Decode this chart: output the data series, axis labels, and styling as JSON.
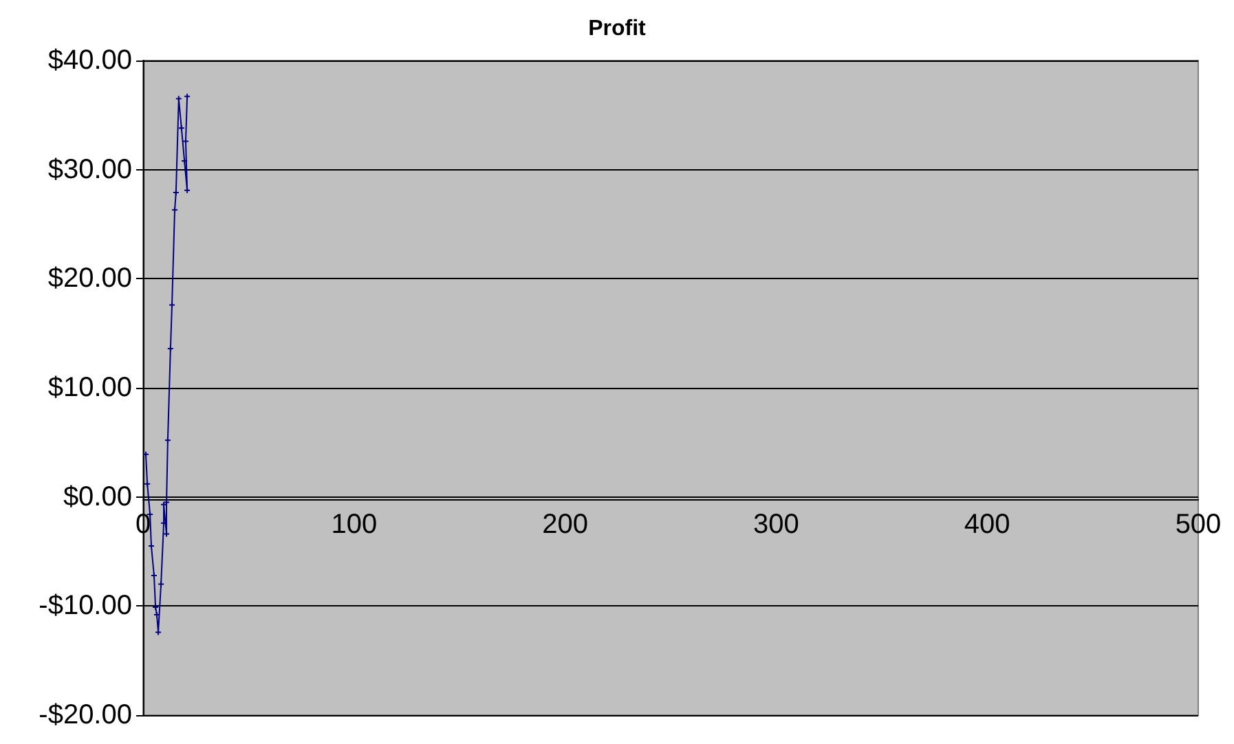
{
  "chart_data": {
    "type": "line",
    "title": "Profit",
    "series": [
      {
        "color": "#000080",
        "x": [
          1.3,
          2,
          3.3,
          3.9,
          5.2,
          5.9,
          6.5,
          7.2,
          8.5,
          9.8,
          9.8,
          11.1,
          11.1,
          11.7,
          13,
          13.7,
          15,
          15.6,
          16.9,
          18.2,
          19.6,
          20.9,
          20.2,
          20.9
        ],
        "values": [
          3.9,
          1.2,
          -1.6,
          -4.5,
          -7.2,
          -10.1,
          -10.8,
          -12.4,
          -8,
          -2.4,
          -0.7,
          -3.4,
          -0.5,
          5.2,
          13.6,
          17.6,
          26.3,
          27.9,
          36.5,
          33.8,
          30.8,
          28.1,
          32.6,
          36.7
        ]
      }
    ],
    "xlim": [
      0,
      500
    ],
    "xticks": [
      0,
      100,
      200,
      300,
      400,
      500
    ],
    "ylim": [
      -20,
      40
    ],
    "yticks": [
      {
        "value": -20,
        "label": "-$20.00"
      },
      {
        "value": -10,
        "label": "-$10.00"
      },
      {
        "value": 0,
        "label": "$0.00"
      },
      {
        "value": 10,
        "label": "$10.00"
      },
      {
        "value": 20,
        "label": "$20.00"
      },
      {
        "value": 30,
        "label": "$30.00"
      },
      {
        "value": 40,
        "label": "$40.00"
      }
    ],
    "grid": "y",
    "marker": "cross",
    "line_style": "solid"
  }
}
